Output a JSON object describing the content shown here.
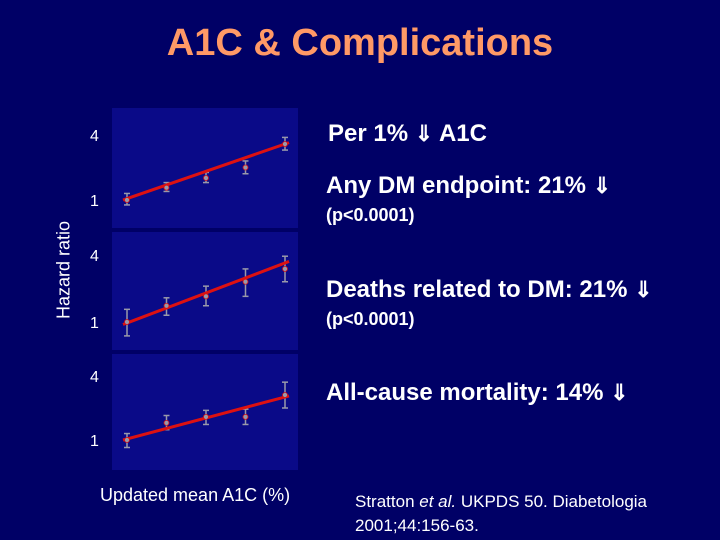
{
  "title": "A1C & Complications",
  "ylabel": "Hazard ratio",
  "xlabel": "Updated mean A1C (%)",
  "arrow_glyph": "⇓",
  "header_annotation": {
    "text": "Per 1%",
    "suffix": "A1C"
  },
  "panels": [
    {
      "label": "Any DM endpoint: 21%",
      "p": "(p<0.0001)"
    },
    {
      "label": "Deaths related to DM: 21%",
      "p": "(p<0.0001)"
    },
    {
      "label": "All-cause mortality: 14%",
      "p": ""
    }
  ],
  "citation": {
    "before": "Stratton ",
    "italic": "et al.",
    "after": " UKPDS 50. Diabetologia",
    "line2": "2001;44:156-63."
  },
  "colors": {
    "background": "#000066",
    "title": "#ff9966",
    "plot_bg": "#0a0a88",
    "fit_line": "#dd1111",
    "points": "#9999aa"
  },
  "chart_data": [
    {
      "type": "line",
      "title": "Any DM endpoint",
      "y_scale": "log",
      "yticks": [
        "1",
        "4"
      ],
      "xlabel": "Updated mean A1C (%)",
      "ylabel": "Hazard ratio",
      "x": [
        1,
        2,
        3,
        4,
        5
      ],
      "series": [
        {
          "values": [
            1.0,
            1.3,
            1.6,
            2.0,
            3.3
          ]
        }
      ],
      "error_bars": [
        [
          0.9,
          1.15
        ],
        [
          1.2,
          1.45
        ],
        [
          1.45,
          1.8
        ],
        [
          1.75,
          2.3
        ],
        [
          2.9,
          3.8
        ]
      ],
      "fit": [
        1.0,
        3.4
      ]
    },
    {
      "type": "line",
      "title": "Deaths related to DM",
      "y_scale": "log",
      "yticks": [
        "1",
        "4"
      ],
      "x": [
        1,
        2,
        3,
        4,
        5
      ],
      "series": [
        {
          "values": [
            1.0,
            1.4,
            1.7,
            2.3,
            3.0
          ]
        }
      ],
      "error_bars": [
        [
          0.75,
          1.3
        ],
        [
          1.15,
          1.65
        ],
        [
          1.4,
          2.1
        ],
        [
          1.7,
          3.0
        ],
        [
          2.3,
          3.9
        ]
      ],
      "fit": [
        0.95,
        3.5
      ]
    },
    {
      "type": "line",
      "title": "All-cause mortality",
      "y_scale": "log",
      "yticks": [
        "1",
        "4"
      ],
      "x": [
        1,
        2,
        3,
        4,
        5
      ],
      "series": [
        {
          "values": [
            1.0,
            1.45,
            1.65,
            1.65,
            2.65
          ]
        }
      ],
      "error_bars": [
        [
          0.85,
          1.15
        ],
        [
          1.25,
          1.7
        ],
        [
          1.4,
          1.9
        ],
        [
          1.4,
          1.95
        ],
        [
          2.0,
          3.5
        ]
      ],
      "fit": [
        1.0,
        2.6
      ]
    }
  ]
}
